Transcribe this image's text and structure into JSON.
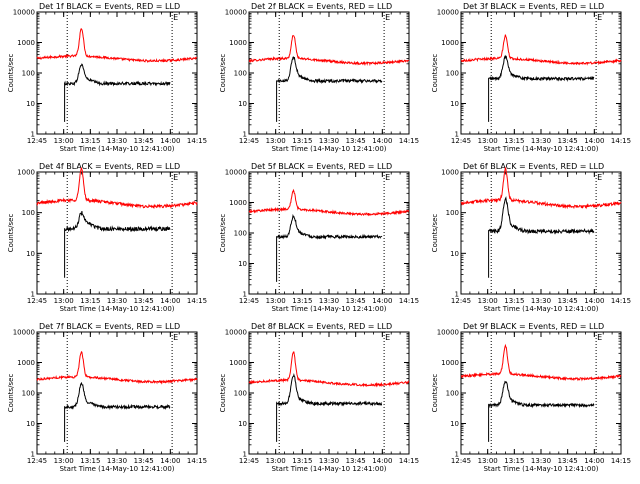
{
  "chart_data": [
    {
      "type": "line",
      "title": "Det 1f BLACK = Events, RED = LLD",
      "xlabel": "Start Time (14-May-10 12:41:00)",
      "ylabel": "Counts/sec",
      "y_scale": "log",
      "ylim": [
        1,
        10000
      ],
      "yticks": [
        "1",
        "10",
        "100",
        "1000",
        "10000"
      ],
      "xlim_minutes_since_1241": [
        4,
        94
      ],
      "xticks": [
        "12:45",
        "13:00",
        "13:15",
        "13:30",
        "13:45",
        "14:00",
        "14:15"
      ],
      "xticks_minutes_since_1241": [
        4,
        19,
        34,
        49,
        64,
        79,
        94
      ],
      "vlines_minutes_since_1241": [
        21,
        80
      ],
      "marker_text": "E",
      "series": [
        {
          "color": "#ff0000",
          "values_desc": "baseline ~300 with peak ~2500",
          "baseline": 300,
          "peak": 2500
        },
        {
          "color": "#000000",
          "baseline": 45,
          "peak": 170
        }
      ]
    },
    {
      "type": "line",
      "title": "Det 2f BLACK = Events, RED = LLD",
      "xlabel": "Start Time (14-May-10 12:41:00)",
      "ylabel": "Counts/sec",
      "y_scale": "log",
      "ylim": [
        1,
        10000
      ],
      "yticks": [
        "1",
        "10",
        "100",
        "1000",
        "10000"
      ],
      "xlim_minutes_since_1241": [
        4,
        94
      ],
      "xticks": [
        "12:45",
        "13:00",
        "13:15",
        "13:30",
        "13:45",
        "14:00",
        "14:15"
      ],
      "xticks_minutes_since_1241": [
        4,
        19,
        34,
        49,
        64,
        79,
        94
      ],
      "vlines_minutes_since_1241": [
        21,
        80
      ],
      "marker_text": "E",
      "series": [
        {
          "color": "#ff0000",
          "baseline": 250,
          "peak": 1500
        },
        {
          "color": "#000000",
          "baseline": 55,
          "peak": 300
        }
      ]
    },
    {
      "type": "line",
      "title": "Det 3f BLACK = Events, RED = LLD",
      "xlabel": "Start Time (14-May-10 12:41:00)",
      "ylabel": "Counts/sec",
      "y_scale": "log",
      "ylim": [
        1,
        10000
      ],
      "yticks": [
        "1",
        "10",
        "100",
        "1000",
        "10000"
      ],
      "xlim_minutes_since_1241": [
        4,
        94
      ],
      "xticks": [
        "12:45",
        "13:00",
        "13:15",
        "13:30",
        "13:45",
        "14:00",
        "14:15"
      ],
      "xticks_minutes_since_1241": [
        4,
        19,
        34,
        49,
        64,
        79,
        94
      ],
      "vlines_minutes_since_1241": [
        21,
        80
      ],
      "marker_text": "E",
      "series": [
        {
          "color": "#ff0000",
          "baseline": 250,
          "peak": 1400
        },
        {
          "color": "#000000",
          "baseline": 65,
          "peak": 300
        }
      ]
    },
    {
      "type": "line",
      "title": "Det 4f BLACK = Events, RED = LLD",
      "xlabel": "Start Time (14-May-10 12:41:00)",
      "ylabel": "Counts/sec",
      "y_scale": "log",
      "ylim": [
        1,
        1000
      ],
      "yticks": [
        "1",
        "10",
        "100",
        "1000"
      ],
      "xlim_minutes_since_1241": [
        4,
        94
      ],
      "xticks": [
        "12:45",
        "13:00",
        "13:15",
        "13:30",
        "13:45",
        "14:00",
        "14:15"
      ],
      "xticks_minutes_since_1241": [
        4,
        19,
        34,
        49,
        64,
        79,
        94
      ],
      "vlines_minutes_since_1241": [
        21,
        80
      ],
      "marker_text": "E",
      "series": [
        {
          "color": "#ff0000",
          "baseline": 170,
          "peak": 1000
        },
        {
          "color": "#000000",
          "baseline": 40,
          "peak": 90
        }
      ]
    },
    {
      "type": "line",
      "title": "Det 5f BLACK = Events, RED = LLD",
      "xlabel": "Start Time (14-May-10 12:41:00)",
      "ylabel": "Counts/sec",
      "y_scale": "log",
      "ylim": [
        1,
        10000
      ],
      "yticks": [
        "1",
        "10",
        "100",
        "1000",
        "10000"
      ],
      "xlim_minutes_since_1241": [
        4,
        94
      ],
      "xticks": [
        "12:45",
        "13:00",
        "13:15",
        "13:30",
        "13:45",
        "14:00",
        "14:15"
      ],
      "xticks_minutes_since_1241": [
        4,
        19,
        34,
        49,
        64,
        79,
        94
      ],
      "vlines_minutes_since_1241": [
        21,
        80
      ],
      "marker_text": "E",
      "series": [
        {
          "color": "#ff0000",
          "baseline": 500,
          "peak": 2000
        },
        {
          "color": "#000000",
          "baseline": 75,
          "peak": 320
        }
      ]
    },
    {
      "type": "line",
      "title": "Det 6f BLACK = Events, RED = LLD",
      "xlabel": "Start Time (14-May-10 12:41:00)",
      "ylabel": "Counts/sec",
      "y_scale": "log",
      "ylim": [
        1,
        1000
      ],
      "yticks": [
        "1",
        "10",
        "100",
        "1000"
      ],
      "xlim_minutes_since_1241": [
        4,
        94
      ],
      "xticks": [
        "12:45",
        "13:00",
        "13:15",
        "13:30",
        "13:45",
        "14:00",
        "14:15"
      ],
      "xticks_minutes_since_1241": [
        4,
        19,
        34,
        49,
        64,
        79,
        94
      ],
      "vlines_minutes_since_1241": [
        21,
        80
      ],
      "marker_text": "E",
      "series": [
        {
          "color": "#ff0000",
          "baseline": 170,
          "peak": 1000
        },
        {
          "color": "#000000",
          "baseline": 35,
          "peak": 200
        }
      ]
    },
    {
      "type": "line",
      "title": "Det 7f BLACK = Events, RED = LLD",
      "xlabel": "Start Time (14-May-10 12:41:00)",
      "ylabel": "Counts/sec",
      "y_scale": "log",
      "ylim": [
        1,
        10000
      ],
      "yticks": [
        "1",
        "10",
        "100",
        "1000",
        "10000"
      ],
      "xlim_minutes_since_1241": [
        4,
        94
      ],
      "xticks": [
        "12:45",
        "13:00",
        "13:15",
        "13:30",
        "13:45",
        "14:00",
        "14:15"
      ],
      "xticks_minutes_since_1241": [
        4,
        19,
        34,
        49,
        64,
        79,
        94
      ],
      "vlines_minutes_since_1241": [
        21,
        80
      ],
      "marker_text": "E",
      "series": [
        {
          "color": "#ff0000",
          "baseline": 280,
          "peak": 1800
        },
        {
          "color": "#000000",
          "baseline": 35,
          "peak": 180
        }
      ]
    },
    {
      "type": "line",
      "title": "Det 8f BLACK = Events, RED = LLD",
      "xlabel": "Start Time (14-May-10 12:41:00)",
      "ylabel": "Counts/sec",
      "y_scale": "log",
      "ylim": [
        1,
        10000
      ],
      "yticks": [
        "1",
        "10",
        "100",
        "1000",
        "10000"
      ],
      "xlim_minutes_since_1241": [
        4,
        94
      ],
      "xticks": [
        "12:45",
        "13:00",
        "13:15",
        "13:30",
        "13:45",
        "14:00",
        "14:15"
      ],
      "xticks_minutes_since_1241": [
        4,
        19,
        34,
        49,
        64,
        79,
        94
      ],
      "vlines_minutes_since_1241": [
        21,
        80
      ],
      "marker_text": "E",
      "series": [
        {
          "color": "#ff0000",
          "baseline": 220,
          "peak": 1800
        },
        {
          "color": "#000000",
          "baseline": 45,
          "peak": 350
        }
      ]
    },
    {
      "type": "line",
      "title": "Det 9f BLACK = Events, RED = LLD",
      "xlabel": "Start Time (14-May-10 12:41:00)",
      "ylabel": "Counts/sec",
      "y_scale": "log",
      "ylim": [
        1,
        10000
      ],
      "yticks": [
        "1",
        "10",
        "100",
        "1000",
        "10000"
      ],
      "xlim_minutes_since_1241": [
        4,
        94
      ],
      "xticks": [
        "12:45",
        "13:00",
        "13:15",
        "13:30",
        "13:45",
        "14:00",
        "14:15"
      ],
      "xticks_minutes_since_1241": [
        4,
        19,
        34,
        49,
        64,
        79,
        94
      ],
      "vlines_minutes_since_1241": [
        21,
        80
      ],
      "marker_text": "E",
      "series": [
        {
          "color": "#ff0000",
          "baseline": 350,
          "peak": 3000
        },
        {
          "color": "#000000",
          "baseline": 40,
          "peak": 220
        }
      ]
    }
  ]
}
